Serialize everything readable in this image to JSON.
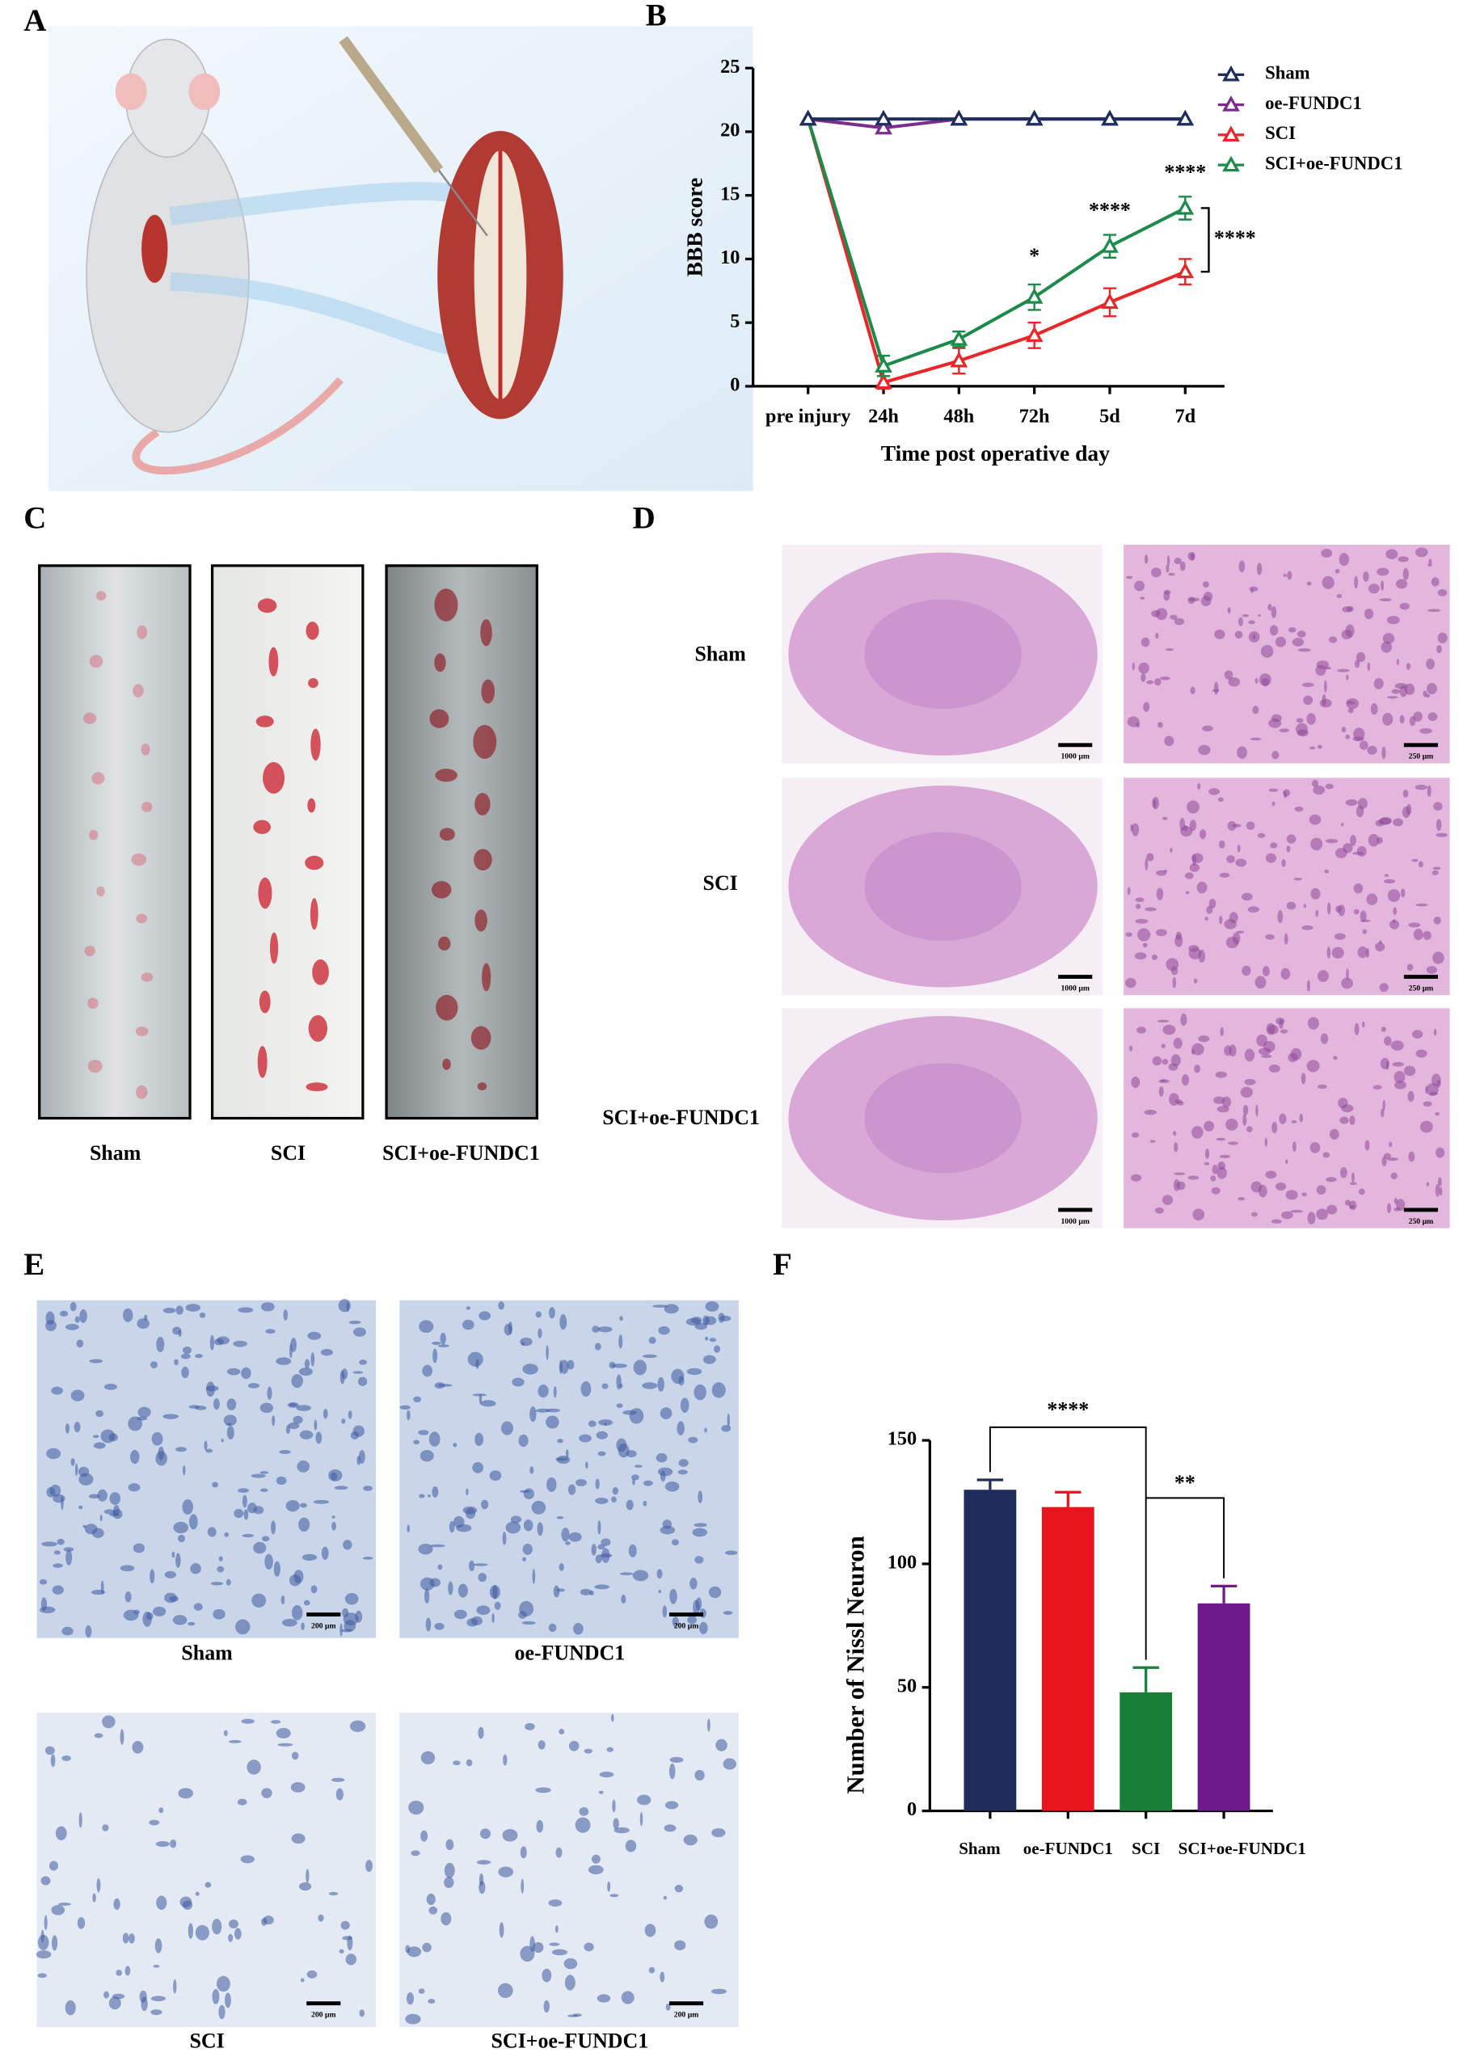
{
  "panel_labels": [
    "A",
    "B",
    "C",
    "D",
    "E",
    "F"
  ],
  "panel_c": {
    "labels": [
      "Sham",
      "SCI",
      "SCI+oe-FUNDC1"
    ]
  },
  "panel_d": {
    "row_labels": [
      "Sham",
      "SCI",
      "SCI+oe-FUNDC1"
    ],
    "scale_bars": [
      "1000 μm",
      "250 μm"
    ]
  },
  "panel_e": {
    "labels": [
      "Sham",
      "oe-FUNDC1",
      "SCI",
      "SCI+oe-FUNDC1"
    ],
    "scale_bar": "200 μm"
  },
  "chart_data": [
    {
      "type": "line",
      "ylabel": "BBB score",
      "xlabel": "Time post operative day",
      "categories": [
        "pre injury",
        "24h",
        "48h",
        "72h",
        "5d",
        "7d"
      ],
      "ylim": [
        0,
        25
      ],
      "yticks": [
        0,
        5,
        10,
        15,
        20,
        25
      ],
      "legend": "top-right",
      "series": [
        {
          "name": "Sham",
          "color": "#1f2d5c",
          "values": [
            21,
            21,
            21,
            21,
            21,
            21
          ]
        },
        {
          "name": "oe-FUNDC1",
          "color": "#7b2d8e",
          "values": [
            21,
            20.3,
            21,
            21,
            21,
            21
          ]
        },
        {
          "name": "SCI",
          "color": "#e8272a",
          "values": [
            21,
            0.3,
            2,
            4,
            6.6,
            9
          ],
          "errors": [
            0,
            0.5,
            1,
            1,
            1.1,
            1
          ]
        },
        {
          "name": "SCI+oe-FUNDC1",
          "color": "#1e8a4a",
          "values": [
            21,
            1.6,
            3.7,
            7,
            11,
            14
          ],
          "errors": [
            0,
            0.8,
            0.6,
            1,
            0.9,
            0.9
          ]
        }
      ],
      "annotations": [
        "*",
        "****",
        "****",
        "****"
      ]
    },
    {
      "type": "bar",
      "ylabel": "Number of Nissl Neuron",
      "categories": [
        "Sham",
        "oe-FUNDC1",
        "SCI",
        "SCI+oe-FUNDC1"
      ],
      "values": [
        130,
        123,
        48,
        84
      ],
      "errors": [
        4,
        6,
        10,
        7
      ],
      "colors": [
        "#1f2d5c",
        "#e8141c",
        "#168038",
        "#6e1a8a"
      ],
      "ylim": [
        0,
        150
      ],
      "yticks": [
        0,
        50,
        100,
        150
      ],
      "annotations": [
        "****",
        "**"
      ]
    }
  ]
}
